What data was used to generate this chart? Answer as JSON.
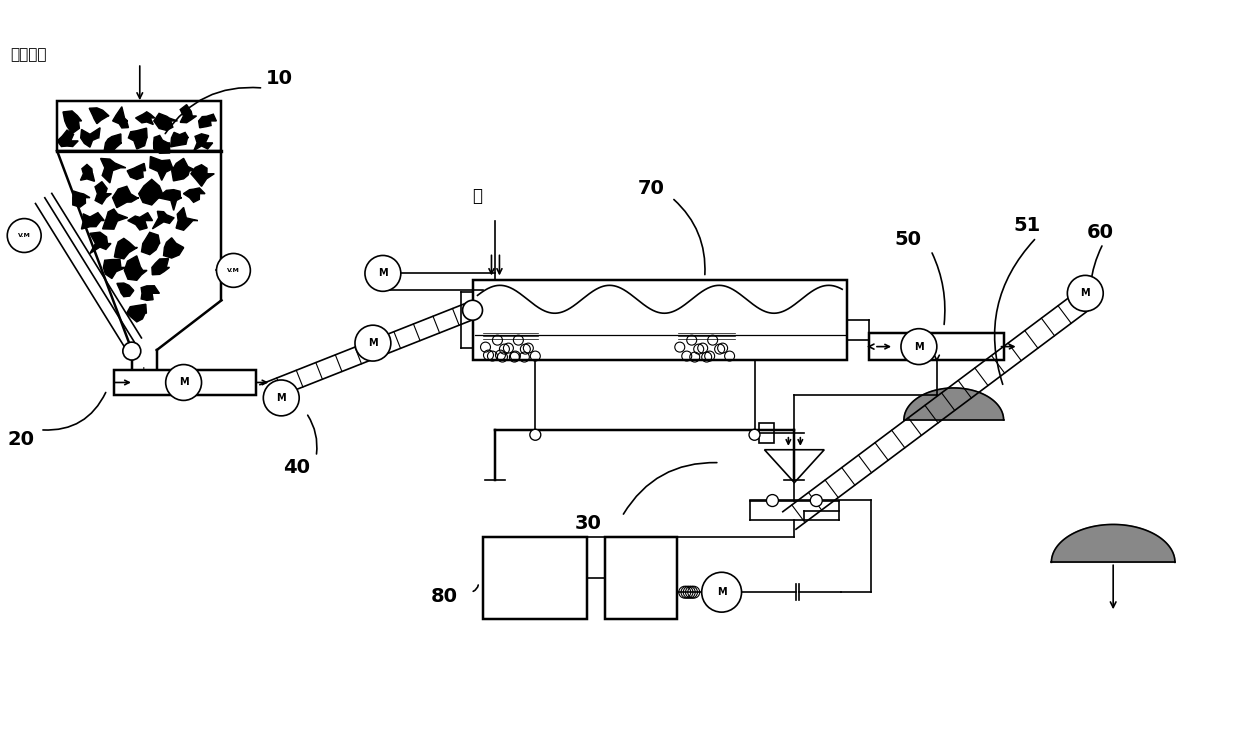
{
  "bg_color": "#ffffff",
  "line_color": "#000000",
  "labels": {
    "wu_ran_tu_rang": "污染土壤",
    "shui": "水",
    "n10": "10",
    "n20": "20",
    "n30": "30",
    "n40": "40",
    "n50": "50",
    "n51": "51",
    "n60": "60",
    "n70": "70",
    "n80": "80"
  },
  "figsize": [
    12.4,
    7.55
  ],
  "dpi": 100
}
